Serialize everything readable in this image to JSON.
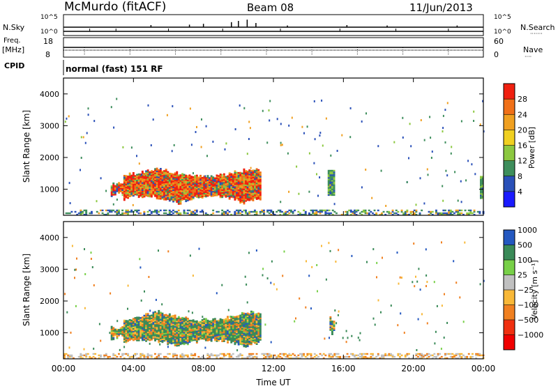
{
  "header": {
    "station": "McMurdo (fitACF)",
    "beam": "Beam 08",
    "date": "11/Jun/2013",
    "cpid_text": "normal (fast) 151 RF"
  },
  "side_labels": {
    "nsky": "N.Sky",
    "freq": "Freq.",
    "mhz": "[MHz]",
    "cpid": "CPID",
    "nsearch": "N.Search",
    "nave": "Nave",
    "dots_nsearch": "·······",
    "dots_nave": "····"
  },
  "strip_ticks": {
    "noise_left": [
      "10^5",
      "10^0"
    ],
    "noise_right": [
      "10^5",
      "10^0"
    ],
    "freq_left": [
      "18",
      "8"
    ],
    "freq_right": [
      "60",
      "0"
    ]
  },
  "colors": {
    "power": [
      "#1a1aff",
      "#2a50b8",
      "#3e8e5c",
      "#8cc840",
      "#f0d020",
      "#f0a020",
      "#f07018",
      "#f02010"
    ],
    "velocity": [
      "#f00000",
      "#f03010",
      "#f08020",
      "#f8b838",
      "#c0c0c0",
      "#78d048",
      "#3a8a58",
      "#2458c0"
    ]
  },
  "chart_data": [
    {
      "type": "heatmap",
      "panel": "power",
      "x": [
        "00:00",
        "04:00",
        "08:00",
        "12:00",
        "16:00",
        "20:00",
        "00:00"
      ],
      "xlabel": "",
      "ylabel": "Slant Range [km]",
      "ylim": [
        180,
        4500
      ],
      "yticks": [
        "1000",
        "2000",
        "3000",
        "4000"
      ],
      "colorbar_label": "Power [dB]",
      "colorbar_ticks": [
        "4",
        "8",
        "12",
        "16",
        "20",
        "24",
        "28"
      ],
      "colorbar_range": [
        0,
        32
      ],
      "regions": [
        {
          "t0": 2.7,
          "t1": 11.2,
          "r0": 500,
          "r1": 1700,
          "level": "core"
        },
        {
          "t0": 15.1,
          "t1": 15.5,
          "r0": 800,
          "r1": 1600,
          "level": "medium"
        },
        {
          "t0": 23.8,
          "t1": 24.0,
          "r0": 700,
          "r1": 1400,
          "level": "medium"
        },
        {
          "t0": 0.0,
          "t1": 24.0,
          "r0": 180,
          "r1": 350,
          "level": "ground"
        }
      ]
    },
    {
      "type": "heatmap",
      "panel": "velocity",
      "x": [
        "00:00",
        "04:00",
        "08:00",
        "12:00",
        "16:00",
        "20:00",
        "00:00"
      ],
      "xlabel": "Time UT",
      "ylabel": "Slant Range [km]",
      "ylim": [
        180,
        4500
      ],
      "yticks": [
        "1000",
        "2000",
        "3000",
        "4000"
      ],
      "colorbar_label": "Velocity [m s⁻¹]",
      "colorbar_ticks": [
        "1000",
        "500",
        "100",
        "25",
        "−25",
        "−100",
        "−500",
        "−1000"
      ],
      "regions": [
        {
          "t0": 2.7,
          "t1": 11.2,
          "r0": 500,
          "r1": 1700,
          "level": "mixed"
        },
        {
          "t0": 15.1,
          "t1": 15.5,
          "r0": 800,
          "r1": 1600,
          "level": "mixed"
        },
        {
          "t0": 0.0,
          "t1": 24.0,
          "r0": 180,
          "r1": 350,
          "level": "ground"
        }
      ]
    }
  ]
}
